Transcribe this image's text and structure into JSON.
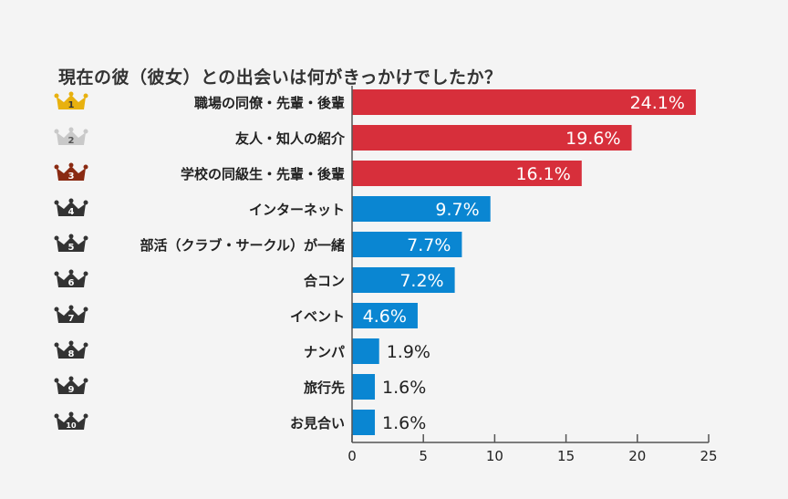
{
  "chart_data": {
    "type": "bar",
    "orientation": "horizontal",
    "title": "現在の彼（彼女）との出会いは何がきっかけでしたか？",
    "xlabel": "",
    "ylabel": "",
    "xlim": [
      0,
      25
    ],
    "x_ticks": [
      0,
      5,
      10,
      15,
      20,
      25
    ],
    "grid": false,
    "categories": [
      "職場の同僚・先輩・後輩",
      "友人・知人の紹介",
      "学校の同級生・先輩・後輩",
      "インターネット",
      "部活（クラブ・サークル）が一緒",
      "合コン",
      "イベント",
      "ナンパ",
      "旅行先",
      "お見合い"
    ],
    "ranks": [
      "1",
      "2",
      "3",
      "4",
      "5",
      "6",
      "7",
      "8",
      "9",
      "10"
    ],
    "values": [
      24.1,
      19.6,
      16.1,
      9.7,
      7.7,
      7.2,
      4.6,
      1.9,
      1.6,
      1.6
    ],
    "value_labels": [
      "24.1%",
      "19.6%",
      "16.1%",
      "9.7%",
      "7.7%",
      "7.2%",
      "4.6%",
      "1.9%",
      "1.6%",
      "1.6%"
    ],
    "unit": "%"
  },
  "colors": {
    "top3_bar": "#d72f3b",
    "other_bar": "#0a86d2",
    "crown_gold": "#e8b10f",
    "crown_silver": "#c9c9c9",
    "crown_bronze": "#8a2a12",
    "crown_dark": "#333333",
    "axis": "#555555"
  }
}
